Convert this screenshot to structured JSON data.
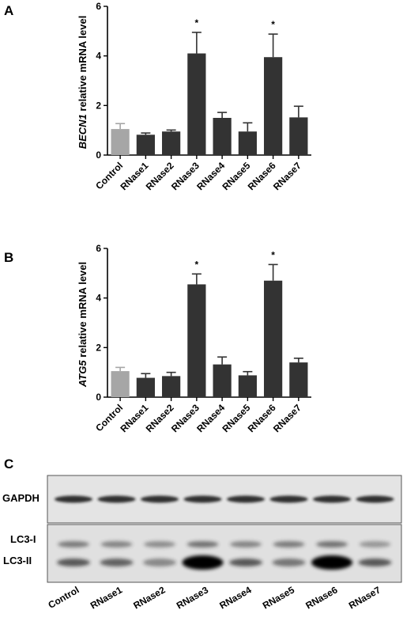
{
  "chart_data": [
    {
      "type": "bar",
      "panel": "A",
      "gene": "BECN1",
      "ylabel_rest": " relative mRNA level",
      "categories": [
        "Control",
        "RNase1",
        "RNase2",
        "RNase3",
        "RNase4",
        "RNase5",
        "RNase6",
        "RNase7"
      ],
      "values": [
        1.05,
        0.82,
        0.95,
        4.1,
        1.5,
        0.95,
        3.95,
        1.52
      ],
      "errors": [
        0.22,
        0.07,
        0.06,
        0.85,
        0.22,
        0.35,
        0.93,
        0.45
      ],
      "significance": [
        "",
        "",
        "",
        "*",
        "",
        "",
        "*",
        ""
      ],
      "bar_colors": [
        "#a6a6a6",
        "#333333",
        "#333333",
        "#333333",
        "#333333",
        "#333333",
        "#333333",
        "#333333"
      ],
      "yticks": [
        0,
        2,
        4,
        6
      ],
      "ylim": [
        0,
        6
      ]
    },
    {
      "type": "bar",
      "panel": "B",
      "gene": "ATG5",
      "ylabel_rest": " relative mRNA level",
      "categories": [
        "Control",
        "RNase1",
        "RNase2",
        "RNase3",
        "RNase4",
        "RNase5",
        "RNase6",
        "RNase7"
      ],
      "values": [
        1.05,
        0.78,
        0.85,
        4.55,
        1.32,
        0.88,
        4.7,
        1.4
      ],
      "errors": [
        0.15,
        0.17,
        0.15,
        0.42,
        0.3,
        0.15,
        0.65,
        0.17
      ],
      "significance": [
        "",
        "",
        "",
        "*",
        "",
        "",
        "*",
        ""
      ],
      "bar_colors": [
        "#a6a6a6",
        "#333333",
        "#333333",
        "#333333",
        "#333333",
        "#333333",
        "#333333",
        "#333333"
      ],
      "yticks": [
        0,
        2,
        4,
        6
      ],
      "ylim": [
        0,
        6
      ]
    }
  ],
  "blot": {
    "panel": "C",
    "gapdh_label": "GAPDH",
    "lc3i_label": "LC3-I",
    "lc3ii_label": "LC3-II",
    "lanes": [
      "Control",
      "RNase1",
      "RNase2",
      "RNase3",
      "RNase4",
      "RNase5",
      "RNase6",
      "RNase7"
    ],
    "lc3i_intensity": [
      0.55,
      0.5,
      0.45,
      0.6,
      0.5,
      0.55,
      0.6,
      0.4
    ],
    "lc3ii_intensity": [
      0.7,
      0.65,
      0.45,
      1.0,
      0.7,
      0.55,
      1.0,
      0.7
    ]
  }
}
